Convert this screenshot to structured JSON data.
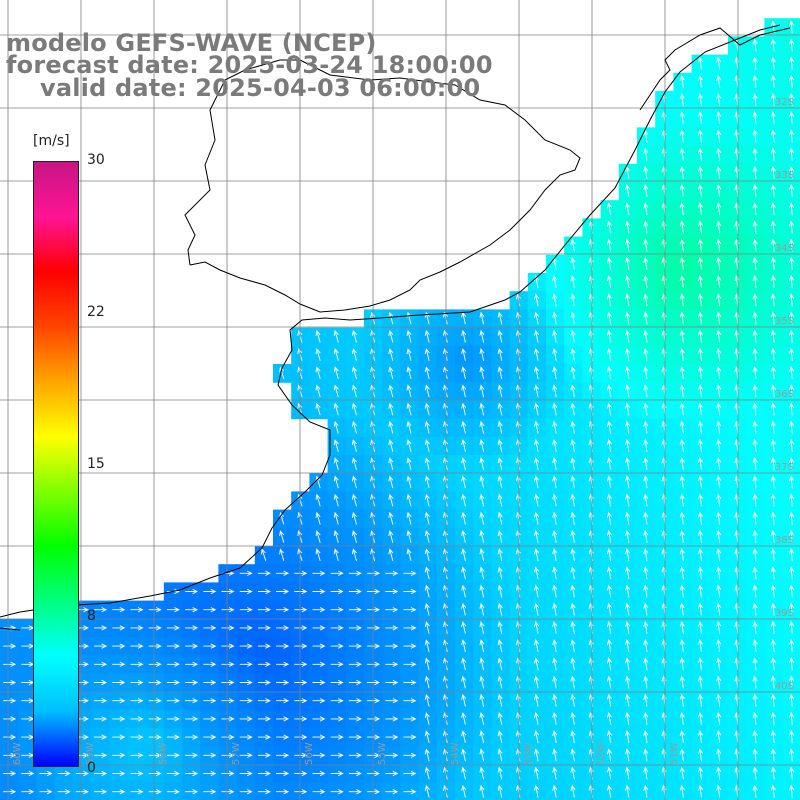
{
  "title": {
    "line1": "modelo GEFS-WAVE (NCEP)",
    "line2": "forecast date: 2025-03-24 18:00:00",
    "line3": "valid date: 2025-04-03 06:00:00"
  },
  "colorbar": {
    "unit": "[m/s]",
    "ticks": [
      "30",
      "22",
      "15",
      "8",
      "0"
    ],
    "min": 0,
    "max": 30,
    "colors": [
      "#0000ff",
      "#00bfff",
      "#00ffff",
      "#00ff7f",
      "#00ff00",
      "#7fff00",
      "#ffff00",
      "#ffa500",
      "#ff4500",
      "#ff0000",
      "#ff1493",
      "#c71585"
    ]
  },
  "lat_labels": [
    "32S",
    "33S",
    "34S",
    "35S",
    "36S",
    "37S",
    "38S",
    "39S",
    "40S"
  ],
  "lon_labels": [
    "60W",
    "59W",
    "58W",
    "57W",
    "56W",
    "55W",
    "54W",
    "53W",
    "52W",
    "51W"
  ],
  "colors": {
    "land": "#ffffff",
    "coast": "#000000",
    "grid": "#808080",
    "arrow": "#ffffff"
  }
}
